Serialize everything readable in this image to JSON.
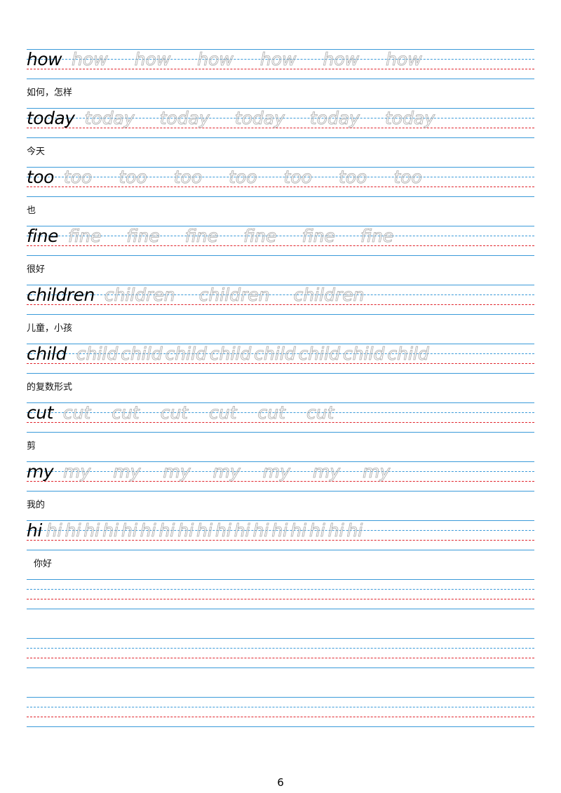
{
  "entries": [
    {
      "word": "how",
      "traces": [
        "how",
        "how",
        "how",
        "how",
        "how",
        "how"
      ],
      "meaning": "如何，怎样"
    },
    {
      "word": "today",
      "traces": [
        "today",
        "today",
        "today",
        "today",
        "today"
      ],
      "meaning": "今天"
    },
    {
      "word": "too",
      "traces": [
        "too",
        "too",
        "too",
        "too",
        "too",
        "too",
        "too"
      ],
      "meaning": "也"
    },
    {
      "word": "fine",
      "traces": [
        "fine",
        "fine",
        "fine",
        "fine",
        "fine",
        "fine"
      ],
      "meaning": "很好"
    },
    {
      "word": "children",
      "traces": [
        "children",
        "children",
        "children"
      ],
      "meaning": "儿童，小孩"
    },
    {
      "word": "child",
      "traces": [
        "child",
        "child",
        "child",
        "child",
        "child",
        "child",
        "child",
        "child"
      ],
      "meaning": "的复数形式"
    },
    {
      "word": "cut",
      "traces": [
        "cut",
        "cut",
        "cut",
        "cut",
        "cut",
        "cut"
      ],
      "meaning": "剪"
    },
    {
      "word": "my",
      "traces": [
        "my",
        "my",
        "my",
        "my",
        "my",
        "my",
        "my"
      ],
      "meaning": "我的"
    },
    {
      "word": "hi",
      "traces": [
        "hi",
        "hi",
        "hi",
        "hi",
        "hi",
        "hi",
        "hi",
        "hi",
        "hi",
        "hi",
        "hi",
        "hi",
        "hi",
        "hi",
        "hi",
        "hi",
        "hi"
      ],
      "meaning": "你好"
    }
  ],
  "blank_rows": 3,
  "page_number": "6",
  "colors": {
    "solid_line": "#3a9ad9",
    "mid_dashed_line": "#3a9ad9",
    "base_dashed_line": "#e0242b",
    "trace_outline": "#a9a9a9"
  }
}
